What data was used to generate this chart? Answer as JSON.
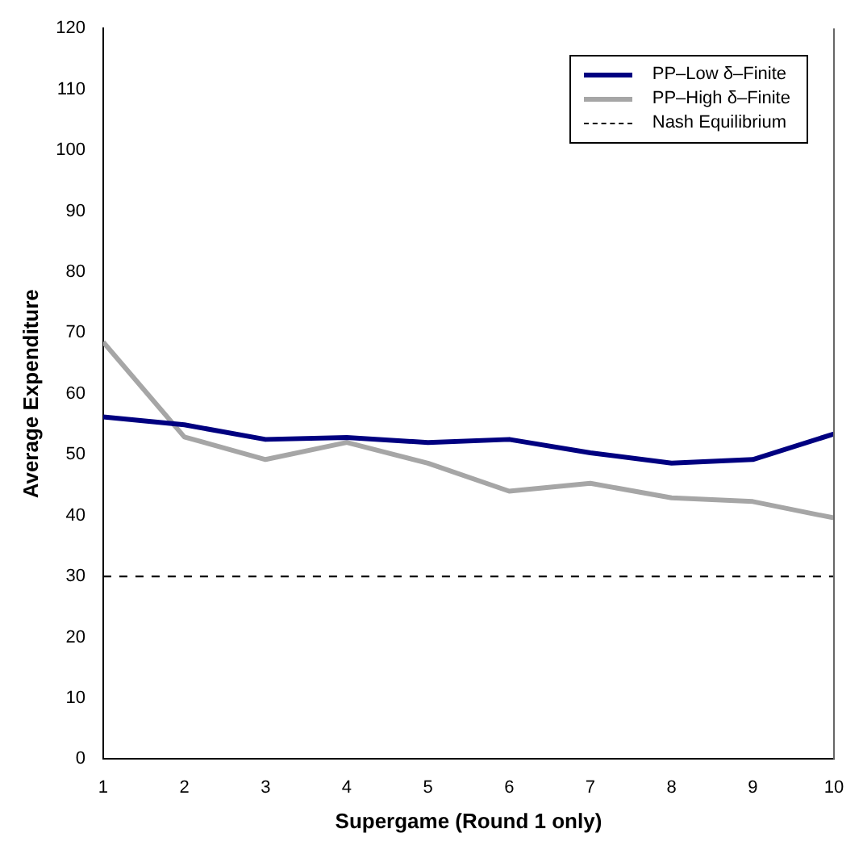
{
  "chart_data": {
    "type": "line",
    "xlabel": "Supergame (Round 1 only)",
    "ylabel": "Average Expenditure",
    "x": [
      1,
      2,
      3,
      4,
      5,
      6,
      7,
      8,
      9,
      10
    ],
    "xlim": [
      1,
      10
    ],
    "xticks": [
      1,
      2,
      3,
      4,
      5,
      6,
      7,
      8,
      9,
      10
    ],
    "ylim": [
      0,
      120
    ],
    "yticks": [
      0,
      10,
      20,
      30,
      40,
      50,
      60,
      70,
      80,
      90,
      100,
      110,
      120
    ],
    "grid": false,
    "legend": "top right",
    "marker": "none",
    "series": [
      {
        "name": "PP–Low δ–Finite",
        "color": "#000080",
        "values": [
          56.2,
          54.9,
          52.5,
          52.8,
          52.0,
          52.5,
          50.3,
          48.6,
          49.2,
          53.4
        ]
      },
      {
        "name": "PP–High δ–Finite",
        "color": "#a6a6a6",
        "values": [
          68.5,
          52.9,
          49.2,
          52.0,
          48.6,
          44.0,
          45.3,
          42.9,
          42.3,
          39.6
        ]
      },
      {
        "name": "Nash Equilibrium",
        "color": "#000000",
        "line_style": "dashed",
        "values": [
          30,
          30,
          30,
          30,
          30,
          30,
          30,
          30,
          30,
          30
        ]
      }
    ]
  }
}
